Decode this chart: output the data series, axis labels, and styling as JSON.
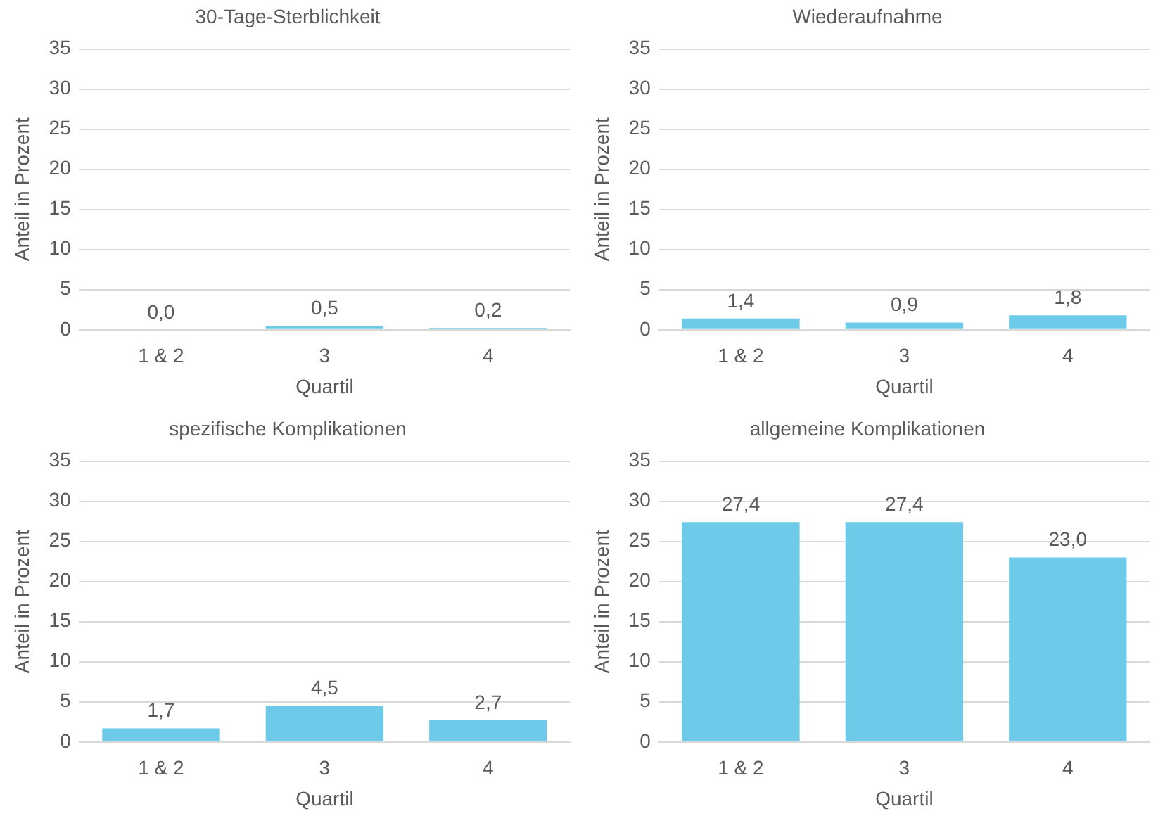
{
  "chart_data": [
    {
      "type": "bar",
      "title": "30-Tage-Sterblichkeit",
      "xlabel": "Quartil",
      "ylabel": "Anteil in Prozent",
      "categories": [
        "1 & 2",
        "3",
        "4"
      ],
      "values": [
        0.0,
        0.5,
        0.2
      ],
      "value_labels": [
        "0,0",
        "0,5",
        "0,2"
      ],
      "color": "#6dcae9",
      "ylim": [
        0,
        35
      ],
      "yticks": [
        0,
        5,
        10,
        15,
        20,
        25,
        30,
        35
      ],
      "grid": "y",
      "legend": false
    },
    {
      "type": "bar",
      "title": "Wiederaufnahme",
      "xlabel": "Quartil",
      "ylabel": "Anteil in Prozent",
      "categories": [
        "1 & 2",
        "3",
        "4"
      ],
      "values": [
        1.4,
        0.9,
        1.8
      ],
      "value_labels": [
        "1,4",
        "0,9",
        "1,8"
      ],
      "color": "#6dcae9",
      "ylim": [
        0,
        35
      ],
      "yticks": [
        0,
        5,
        10,
        15,
        20,
        25,
        30,
        35
      ],
      "grid": "y",
      "legend": false
    },
    {
      "type": "bar",
      "title": "spezifische Komplikationen",
      "xlabel": "Quartil",
      "ylabel": "Anteil in Prozent",
      "categories": [
        "1 & 2",
        "3",
        "4"
      ],
      "values": [
        1.7,
        4.5,
        2.7
      ],
      "value_labels": [
        "1,7",
        "4,5",
        "2,7"
      ],
      "color": "#6dcae9",
      "ylim": [
        0,
        35
      ],
      "yticks": [
        0,
        5,
        10,
        15,
        20,
        25,
        30,
        35
      ],
      "grid": "y",
      "legend": false
    },
    {
      "type": "bar",
      "title": "allgemeine Komplikationen",
      "xlabel": "Quartil",
      "ylabel": "Anteil in Prozent",
      "categories": [
        "1 & 2",
        "3",
        "4"
      ],
      "values": [
        27.4,
        27.4,
        23.0
      ],
      "value_labels": [
        "27,4",
        "27,4",
        "23,0"
      ],
      "color": "#6dcae9",
      "ylim": [
        0,
        35
      ],
      "yticks": [
        0,
        5,
        10,
        15,
        20,
        25,
        30,
        35
      ],
      "grid": "y",
      "legend": false
    }
  ]
}
